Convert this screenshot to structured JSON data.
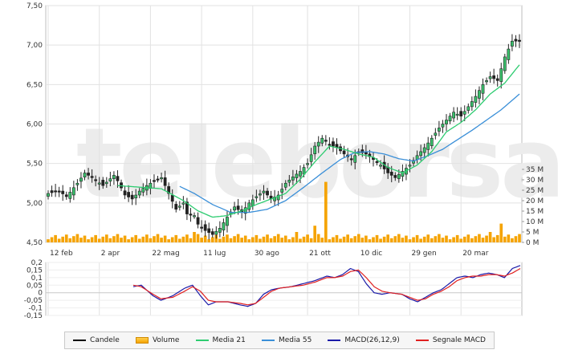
{
  "watermark": "teleborsa",
  "chart_data": [
    {
      "type": "candlestick",
      "ylim": [
        4.5,
        7.5
      ],
      "y_ticks": [
        "7,50",
        "7,00",
        "6,50",
        "6,00",
        "5,50",
        "5,00",
        "4,50"
      ],
      "x_ticks": [
        "12 feb",
        "2 apr",
        "22 mag",
        "11 lug",
        "30 ago",
        "21 ott",
        "10 dic",
        "29 gen",
        "20 mar"
      ],
      "price_anchors": [
        [
          0,
          5.12
        ],
        [
          3,
          5.15
        ],
        [
          5,
          5.08
        ],
        [
          8,
          5.25
        ],
        [
          10,
          5.38
        ],
        [
          12,
          5.32
        ],
        [
          15,
          5.22
        ],
        [
          18,
          5.35
        ],
        [
          19,
          5.28
        ],
        [
          21,
          5.1
        ],
        [
          23,
          5.05
        ],
        [
          25,
          5.15
        ],
        [
          27,
          5.22
        ],
        [
          29,
          5.28
        ],
        [
          31,
          5.32
        ],
        [
          33,
          5.12
        ],
        [
          35,
          4.92
        ],
        [
          37,
          5.0
        ],
        [
          38,
          4.86
        ],
        [
          40,
          4.84
        ],
        [
          41,
          4.73
        ],
        [
          43,
          4.65
        ],
        [
          45,
          4.6
        ],
        [
          47,
          4.68
        ],
        [
          49,
          4.82
        ],
        [
          51,
          4.95
        ],
        [
          53,
          4.88
        ],
        [
          55,
          5.0
        ],
        [
          57,
          5.08
        ],
        [
          59,
          5.15
        ],
        [
          61,
          5.05
        ],
        [
          63,
          5.1
        ],
        [
          65,
          5.25
        ],
        [
          67,
          5.33
        ],
        [
          69,
          5.4
        ],
        [
          71,
          5.5
        ],
        [
          73,
          5.72
        ],
        [
          75,
          5.82
        ],
        [
          77,
          5.74
        ],
        [
          79,
          5.7
        ],
        [
          81,
          5.62
        ],
        [
          83,
          5.55
        ],
        [
          85,
          5.65
        ],
        [
          87,
          5.62
        ],
        [
          89,
          5.55
        ],
        [
          91,
          5.48
        ],
        [
          93,
          5.38
        ],
        [
          95,
          5.32
        ],
        [
          97,
          5.4
        ],
        [
          99,
          5.48
        ],
        [
          101,
          5.6
        ],
        [
          103,
          5.7
        ],
        [
          105,
          5.82
        ],
        [
          107,
          5.95
        ],
        [
          109,
          6.05
        ],
        [
          111,
          6.15
        ],
        [
          113,
          6.1
        ],
        [
          115,
          6.22
        ],
        [
          117,
          6.35
        ],
        [
          119,
          6.5
        ],
        [
          121,
          6.6
        ],
        [
          123,
          6.55
        ],
        [
          125,
          6.85
        ],
        [
          127,
          7.05
        ],
        [
          129,
          7.05
        ]
      ],
      "ma21_anchors": [
        [
          19,
          5.22
        ],
        [
          25,
          5.2
        ],
        [
          31,
          5.18
        ],
        [
          37,
          5.03
        ],
        [
          41,
          4.9
        ],
        [
          45,
          4.82
        ],
        [
          49,
          4.84
        ],
        [
          53,
          4.9
        ],
        [
          57,
          4.98
        ],
        [
          61,
          5.05
        ],
        [
          65,
          5.12
        ],
        [
          69,
          5.3
        ],
        [
          73,
          5.52
        ],
        [
          77,
          5.72
        ],
        [
          81,
          5.68
        ],
        [
          85,
          5.62
        ],
        [
          89,
          5.58
        ],
        [
          93,
          5.45
        ],
        [
          97,
          5.38
        ],
        [
          101,
          5.48
        ],
        [
          105,
          5.65
        ],
        [
          109,
          5.9
        ],
        [
          113,
          6.02
        ],
        [
          117,
          6.18
        ],
        [
          121,
          6.38
        ],
        [
          125,
          6.52
        ],
        [
          129,
          6.75
        ]
      ],
      "ma55_anchors": [
        [
          36,
          5.21
        ],
        [
          40,
          5.12
        ],
        [
          45,
          4.98
        ],
        [
          50,
          4.88
        ],
        [
          55,
          4.88
        ],
        [
          60,
          4.92
        ],
        [
          65,
          5.03
        ],
        [
          70,
          5.2
        ],
        [
          75,
          5.38
        ],
        [
          80,
          5.55
        ],
        [
          84,
          5.64
        ],
        [
          88,
          5.65
        ],
        [
          92,
          5.62
        ],
        [
          96,
          5.56
        ],
        [
          100,
          5.53
        ],
        [
          104,
          5.6
        ],
        [
          108,
          5.68
        ],
        [
          112,
          5.8
        ],
        [
          116,
          5.92
        ],
        [
          120,
          6.05
        ],
        [
          124,
          6.18
        ],
        [
          129,
          6.38
        ]
      ],
      "series": [
        {
          "name": "Candele",
          "color": "#000000"
        },
        {
          "name": "Media 21",
          "color": "#2ecc71"
        },
        {
          "name": "Media 55",
          "color": "#3a8fd8"
        }
      ]
    },
    {
      "type": "bar",
      "name": "Volume",
      "color": "#f5a300",
      "y_ticks": [
        "35 M",
        "30 M",
        "25 M",
        "20 M",
        "15 M",
        "10 M",
        "5 M",
        "0 M"
      ],
      "ylim": [
        0,
        35
      ],
      "volume_base_millions": 1.5,
      "spikes": [
        {
          "index": 76,
          "value_millions": 29
        },
        {
          "index": 73,
          "value_millions": 8
        },
        {
          "index": 124,
          "value_millions": 9
        },
        {
          "index": 121,
          "value_millions": 5
        },
        {
          "index": 40,
          "value_millions": 5
        },
        {
          "index": 68,
          "value_millions": 5
        }
      ]
    },
    {
      "type": "line",
      "ylim": [
        -0.15,
        0.2
      ],
      "y_ticks": [
        "0,2",
        "0,15",
        "0,1",
        "0,05",
        "0",
        "-0,05",
        "-0,1",
        "-0,15"
      ],
      "macd_anchors": [
        [
          12,
          0.04
        ],
        [
          14,
          0.05
        ],
        [
          17,
          -0.02
        ],
        [
          19,
          -0.05
        ],
        [
          22,
          -0.02
        ],
        [
          25,
          0.03
        ],
        [
          27,
          0.05
        ],
        [
          29,
          -0.02
        ],
        [
          31,
          -0.08
        ],
        [
          33,
          -0.06
        ],
        [
          36,
          -0.06
        ],
        [
          39,
          -0.08
        ],
        [
          41,
          -0.09
        ],
        [
          43,
          -0.07
        ],
        [
          45,
          -0.01
        ],
        [
          47,
          0.02
        ],
        [
          49,
          0.03
        ],
        [
          52,
          0.04
        ],
        [
          55,
          0.06
        ],
        [
          58,
          0.08
        ],
        [
          61,
          0.11
        ],
        [
          63,
          0.1
        ],
        [
          65,
          0.12
        ],
        [
          67,
          0.16
        ],
        [
          69,
          0.14
        ],
        [
          71,
          0.06
        ],
        [
          73,
          0.0
        ],
        [
          75,
          -0.01
        ],
        [
          77,
          0.0
        ],
        [
          80,
          -0.01
        ],
        [
          82,
          -0.04
        ],
        [
          84,
          -0.06
        ],
        [
          86,
          -0.03
        ],
        [
          88,
          0.0
        ],
        [
          90,
          0.02
        ],
        [
          92,
          0.06
        ],
        [
          94,
          0.1
        ],
        [
          96,
          0.11
        ],
        [
          98,
          0.1
        ],
        [
          100,
          0.12
        ],
        [
          102,
          0.13
        ],
        [
          104,
          0.12
        ],
        [
          106,
          0.1
        ],
        [
          108,
          0.16
        ],
        [
          110,
          0.18
        ]
      ],
      "signal_anchors": [
        [
          12,
          0.05
        ],
        [
          14,
          0.04
        ],
        [
          17,
          -0.01
        ],
        [
          19,
          -0.04
        ],
        [
          22,
          -0.03
        ],
        [
          25,
          0.01
        ],
        [
          27,
          0.04
        ],
        [
          29,
          0.01
        ],
        [
          31,
          -0.05
        ],
        [
          33,
          -0.06
        ],
        [
          36,
          -0.06
        ],
        [
          39,
          -0.07
        ],
        [
          41,
          -0.08
        ],
        [
          43,
          -0.07
        ],
        [
          45,
          -0.03
        ],
        [
          47,
          0.01
        ],
        [
          49,
          0.03
        ],
        [
          52,
          0.04
        ],
        [
          55,
          0.05
        ],
        [
          58,
          0.07
        ],
        [
          61,
          0.1
        ],
        [
          63,
          0.1
        ],
        [
          65,
          0.11
        ],
        [
          67,
          0.14
        ],
        [
          69,
          0.15
        ],
        [
          71,
          0.1
        ],
        [
          73,
          0.04
        ],
        [
          75,
          0.01
        ],
        [
          77,
          0.0
        ],
        [
          80,
          -0.01
        ],
        [
          82,
          -0.03
        ],
        [
          84,
          -0.05
        ],
        [
          86,
          -0.04
        ],
        [
          88,
          -0.01
        ],
        [
          90,
          0.01
        ],
        [
          92,
          0.04
        ],
        [
          94,
          0.08
        ],
        [
          96,
          0.1
        ],
        [
          98,
          0.11
        ],
        [
          100,
          0.11
        ],
        [
          102,
          0.12
        ],
        [
          104,
          0.12
        ],
        [
          106,
          0.11
        ],
        [
          108,
          0.13
        ],
        [
          110,
          0.16
        ]
      ],
      "series": [
        {
          "name": "MACD(26,12,9)",
          "color": "#1a1aa8"
        },
        {
          "name": "Segnale MACD",
          "color": "#e02020"
        }
      ]
    }
  ],
  "legend": [
    {
      "label": "Candele",
      "kind": "line",
      "color": "#000000"
    },
    {
      "label": "Volume",
      "kind": "box",
      "color": "#f5a300"
    },
    {
      "label": "Media 21",
      "kind": "line",
      "color": "#2ecc71"
    },
    {
      "label": "Media 55",
      "kind": "line",
      "color": "#3a8fd8"
    },
    {
      "label": "MACD(26,12,9)",
      "kind": "line",
      "color": "#1a1aa8"
    },
    {
      "label": "Segnale MACD",
      "kind": "line",
      "color": "#e02020"
    }
  ]
}
